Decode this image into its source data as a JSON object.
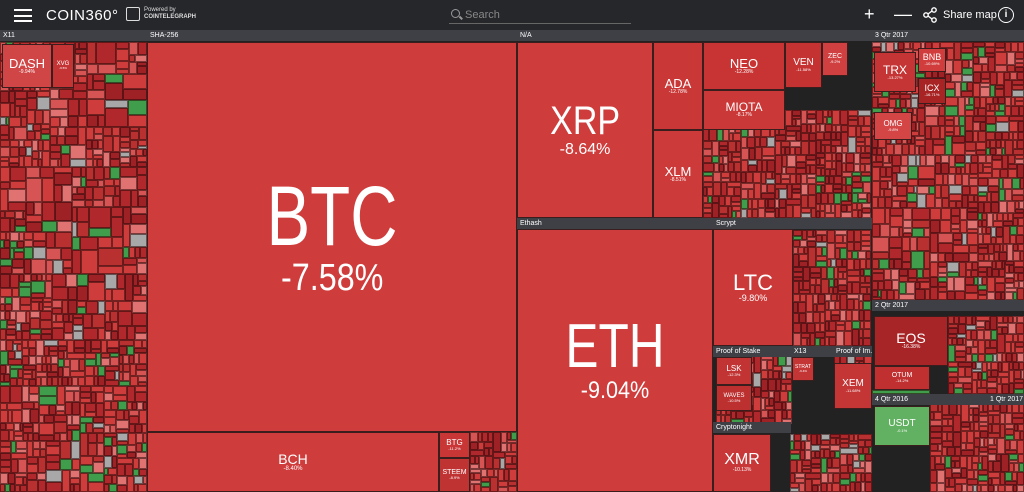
{
  "header": {
    "logo": "COIN360°",
    "powered_by": "Powered by",
    "powered_brand": "COINTELEGRAPH",
    "search_placeholder": "Search",
    "zoom_in": "+",
    "zoom_out": "—",
    "share_label": "Share map",
    "info_label": "i"
  },
  "sections": {
    "x11": "X11",
    "sha256": "SHA-256",
    "na": "N/A",
    "ethash": "Ethash",
    "scrypt": "Scrypt",
    "proof_of_stake": "Proof of Stake",
    "x13": "X13",
    "proof_of_im": "Proof of Im...",
    "cryptonight": "Cryptonight",
    "q3_2017": "3 Qtr 2017",
    "q2_2017": "2 Qtr 2017",
    "q4_2016": "4 Qtr 2016",
    "q1_2017": "1 Qtr 2017"
  },
  "coins": {
    "btc": {
      "symbol": "BTC",
      "change": "-7.58%"
    },
    "eth": {
      "symbol": "ETH",
      "change": "-9.04%"
    },
    "xrp": {
      "symbol": "XRP",
      "change": "-8.64%"
    },
    "bch": {
      "symbol": "BCH",
      "change": "-8.40%"
    },
    "ltc": {
      "symbol": "LTC",
      "change": "-9.80%"
    },
    "ada": {
      "symbol": "ADA",
      "change": "-12.78%"
    },
    "xlm": {
      "symbol": "XLM",
      "change": "-8.51%"
    },
    "neo": {
      "symbol": "NEO",
      "change": "-12.28%"
    },
    "miota": {
      "symbol": "MIOTA",
      "change": "-8.17%"
    },
    "ven": {
      "symbol": "VEN",
      "change": "-11.58%"
    },
    "zec": {
      "symbol": "ZEC",
      "change": "-9.2%"
    },
    "eos": {
      "symbol": "EOS",
      "change": "-16.38%"
    },
    "trx": {
      "symbol": "TRX",
      "change": "-13.27%"
    },
    "bnb": {
      "symbol": "BNB",
      "change": "-10.69%"
    },
    "icx": {
      "symbol": "ICX",
      "change": "-16.71%"
    },
    "omg": {
      "symbol": "OMG",
      "change": "-9.8%"
    },
    "dash": {
      "symbol": "DASH",
      "change": "-9.94%"
    },
    "xvg": {
      "symbol": "XVG",
      "change": "-9.5%"
    },
    "xmr": {
      "symbol": "XMR",
      "change": "-10.13%"
    },
    "xem": {
      "symbol": "XEM",
      "change": "-11.68%"
    },
    "usdt": {
      "symbol": "USDT",
      "change": "-0.1%"
    },
    "otum": {
      "symbol": "OTUM",
      "change": "-14.2%"
    },
    "lsk": {
      "symbol": "LSK",
      "change": "-12.3%"
    },
    "strat": {
      "symbol": "STRAT",
      "change": "-9.4%"
    },
    "waves": {
      "symbol": "WAVES",
      "change": "-10.5%"
    },
    "btg": {
      "symbol": "BTG",
      "change": "-11.2%"
    },
    "steem": {
      "symbol": "STEEM",
      "change": "-8.9%"
    }
  },
  "colors": {
    "down": "#cf3c3c",
    "down_dark": "#b0282b",
    "up": "#3f9d4b",
    "flat": "#a8a8a8",
    "header": "#26272b",
    "section_bar": "#3e4046"
  }
}
